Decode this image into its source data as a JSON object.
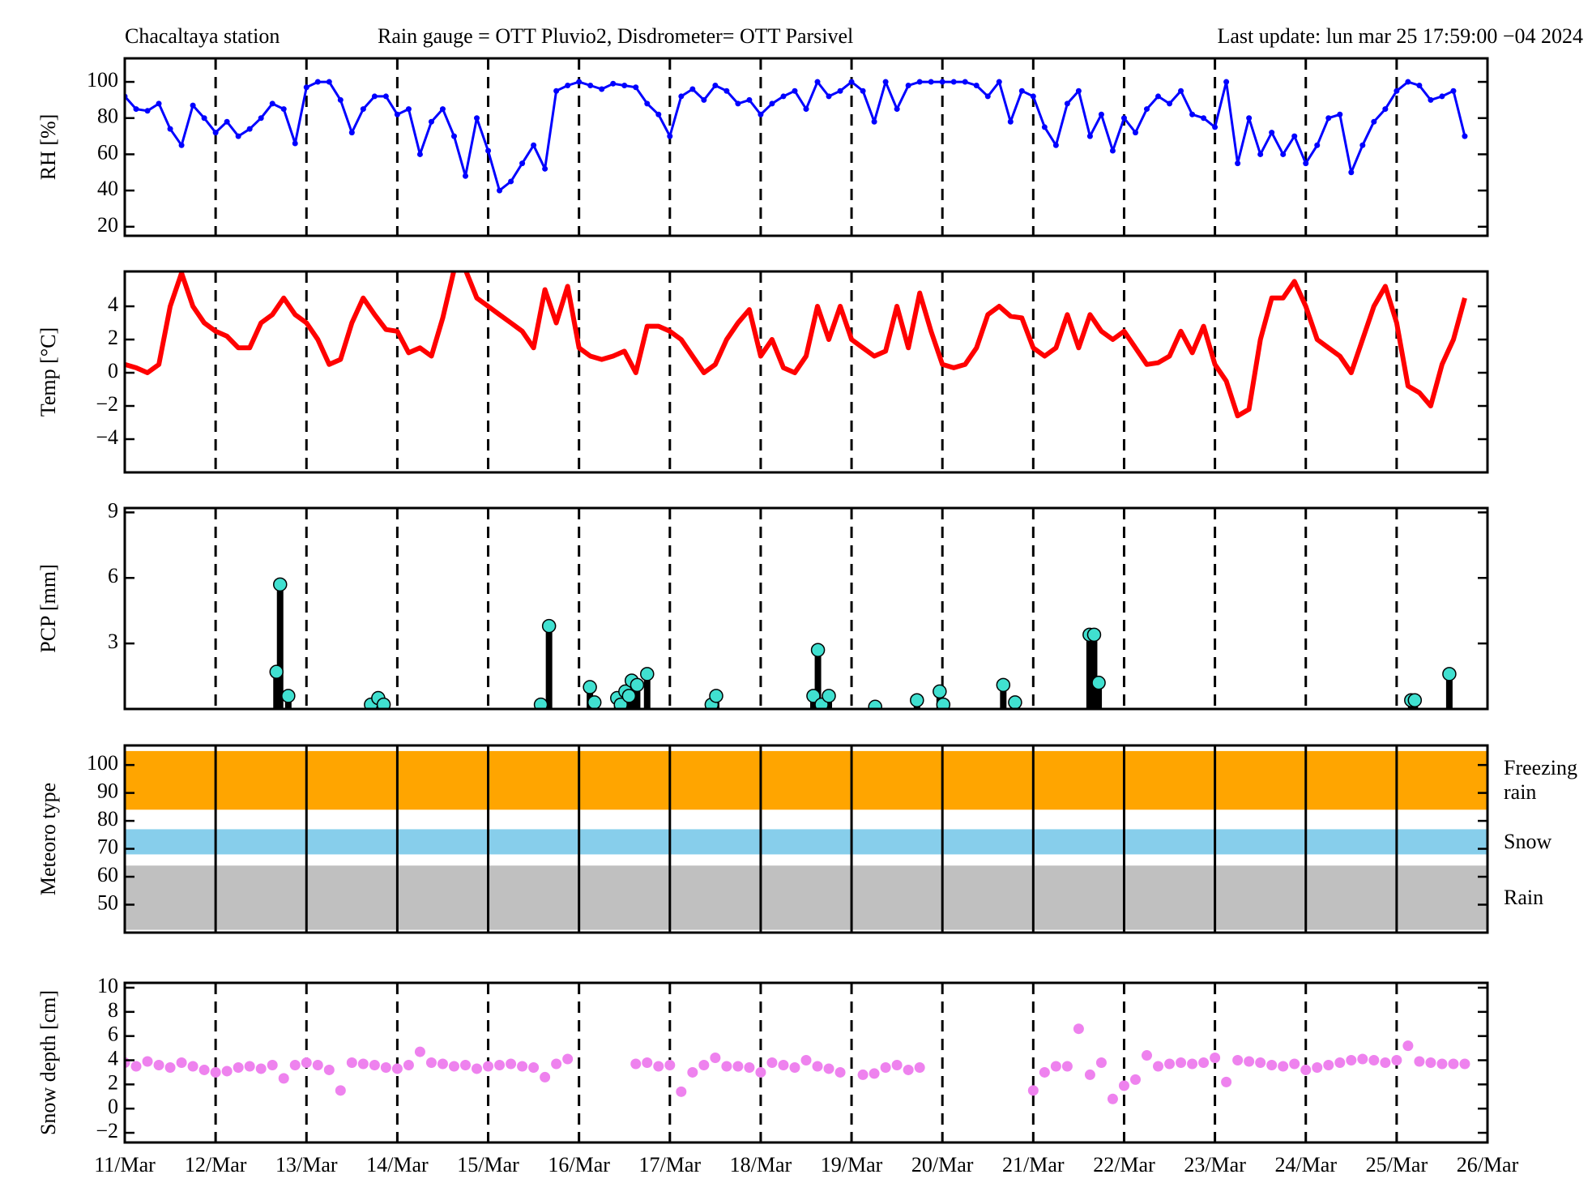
{
  "chart_data": {
    "type": "multi-panel",
    "header": [
      "Chacaltaya station",
      "Rain gauge = OTT Pluvio2, Disdrometer= OTT Parsivel",
      "Last update: lun mar 25 17:59:00 −04 2024"
    ],
    "xlim": [
      0,
      15
    ],
    "xticks": [
      {
        "value": 0,
        "label": "11/Mar"
      },
      {
        "value": 1,
        "label": "12/Mar"
      },
      {
        "value": 2,
        "label": "13/Mar"
      },
      {
        "value": 3,
        "label": "14/Mar"
      },
      {
        "value": 4,
        "label": "15/Mar"
      },
      {
        "value": 5,
        "label": "16/Mar"
      },
      {
        "value": 6,
        "label": "17/Mar"
      },
      {
        "value": 7,
        "label": "18/Mar"
      },
      {
        "value": 8,
        "label": "19/Mar"
      },
      {
        "value": 9,
        "label": "20/Mar"
      },
      {
        "value": 10,
        "label": "21/Mar"
      },
      {
        "value": 11,
        "label": "22/Mar"
      },
      {
        "value": 12,
        "label": "23/Mar"
      },
      {
        "value": 13,
        "label": "24/Mar"
      },
      {
        "value": 14,
        "label": "25/Mar"
      },
      {
        "value": 15,
        "label": "26/Mar"
      }
    ],
    "panels": [
      {
        "type": "line",
        "ylabel": "RH [%]",
        "color": "#0000ff",
        "markers": true,
        "day_lines": "dashed",
        "ylim": [
          15,
          113
        ],
        "yticks": [
          20,
          40,
          60,
          80,
          100
        ],
        "x": [
          0,
          0.125,
          0.25,
          0.375,
          0.5,
          0.625,
          0.75,
          0.875,
          1,
          1.125,
          1.25,
          1.375,
          1.5,
          1.625,
          1.75,
          1.875,
          2,
          2.125,
          2.25,
          2.375,
          2.5,
          2.625,
          2.75,
          2.875,
          3,
          3.125,
          3.25,
          3.375,
          3.5,
          3.625,
          3.75,
          3.875,
          4,
          4.125,
          4.25,
          4.375,
          4.5,
          4.625,
          4.75,
          4.875,
          5,
          5.125,
          5.25,
          5.375,
          5.5,
          5.625,
          5.75,
          5.875,
          6,
          6.125,
          6.25,
          6.375,
          6.5,
          6.625,
          6.75,
          6.875,
          7,
          7.125,
          7.25,
          7.375,
          7.5,
          7.625,
          7.75,
          7.875,
          8,
          8.125,
          8.25,
          8.375,
          8.5,
          8.625,
          8.75,
          8.875,
          9,
          9.125,
          9.25,
          9.375,
          9.5,
          9.625,
          9.75,
          9.875,
          10,
          10.125,
          10.25,
          10.375,
          10.5,
          10.625,
          10.75,
          10.875,
          11,
          11.125,
          11.25,
          11.375,
          11.5,
          11.625,
          11.75,
          11.875,
          12,
          12.125,
          12.25,
          12.375,
          12.5,
          12.625,
          12.75,
          12.875,
          13,
          13.125,
          13.25,
          13.375,
          13.5,
          13.625,
          13.75,
          13.875,
          14,
          14.125,
          14.25,
          14.375,
          14.5,
          14.625,
          14.75
        ],
        "values": [
          92,
          85,
          84,
          88,
          74,
          65,
          87,
          80,
          72,
          78,
          70,
          74,
          80,
          88,
          85,
          66,
          97,
          100,
          100,
          90,
          72,
          85,
          92,
          92,
          82,
          85,
          60,
          78,
          85,
          70,
          48,
          80,
          62,
          40,
          45,
          55,
          65,
          52,
          95,
          98,
          100,
          98,
          96,
          99,
          98,
          97,
          88,
          82,
          70,
          92,
          96,
          90,
          98,
          95,
          88,
          90,
          82,
          88,
          92,
          95,
          85,
          100,
          92,
          95,
          100,
          95,
          78,
          100,
          85,
          98,
          100,
          100,
          100,
          100,
          100,
          98,
          92,
          100,
          78,
          95,
          92,
          75,
          65,
          88,
          95,
          70,
          82,
          62,
          80,
          72,
          85,
          92,
          88,
          95,
          82,
          80,
          75,
          100,
          55,
          80,
          60,
          72,
          60,
          70,
          55,
          65,
          80,
          82,
          50,
          65,
          78,
          85,
          95,
          100,
          98,
          90,
          92,
          95,
          70
        ]
      },
      {
        "type": "line",
        "ylabel": "Temp [°C]",
        "color": "#ff0000",
        "markers": false,
        "day_lines": "dashed",
        "ylim": [
          -6,
          6.1
        ],
        "yticks": [
          {
            "value": -4,
            "label": "−4"
          },
          {
            "value": -2,
            "label": "−2"
          },
          0,
          2,
          4
        ],
        "x": [
          0,
          0.125,
          0.25,
          0.375,
          0.5,
          0.625,
          0.75,
          0.875,
          1,
          1.125,
          1.25,
          1.375,
          1.5,
          1.625,
          1.75,
          1.875,
          2,
          2.125,
          2.25,
          2.375,
          2.5,
          2.625,
          2.75,
          2.875,
          3,
          3.125,
          3.25,
          3.375,
          3.5,
          3.625,
          3.75,
          3.875,
          4,
          4.125,
          4.25,
          4.375,
          4.5,
          4.625,
          4.75,
          4.875,
          5,
          5.125,
          5.25,
          5.375,
          5.5,
          5.625,
          5.75,
          5.875,
          6,
          6.125,
          6.25,
          6.375,
          6.5,
          6.625,
          6.75,
          6.875,
          7,
          7.125,
          7.25,
          7.375,
          7.5,
          7.625,
          7.75,
          7.875,
          8,
          8.125,
          8.25,
          8.375,
          8.5,
          8.625,
          8.75,
          8.875,
          9,
          9.125,
          9.25,
          9.375,
          9.5,
          9.625,
          9.75,
          9.875,
          10,
          10.125,
          10.25,
          10.375,
          10.5,
          10.625,
          10.75,
          10.875,
          11,
          11.125,
          11.25,
          11.375,
          11.5,
          11.625,
          11.75,
          11.875,
          12,
          12.125,
          12.25,
          12.375,
          12.5,
          12.625,
          12.75,
          12.875,
          13,
          13.125,
          13.25,
          13.375,
          13.5,
          13.625,
          13.75,
          13.875,
          14,
          14.125,
          14.25,
          14.375,
          14.5,
          14.625,
          14.75
        ],
        "values": [
          0.5,
          0.3,
          0,
          0.5,
          4,
          6,
          4,
          3,
          2.5,
          2.2,
          1.5,
          1.5,
          3,
          3.5,
          4.5,
          3.5,
          3,
          2,
          0.5,
          0.8,
          3,
          4.5,
          3.5,
          2.6,
          2.5,
          1.2,
          1.5,
          1,
          3.3,
          6.2,
          6.2,
          4.5,
          4,
          3.5,
          3,
          2.5,
          1.5,
          5,
          3,
          5.2,
          1.5,
          1,
          0.8,
          1,
          1.3,
          0,
          2.8,
          2.8,
          2.5,
          2,
          1,
          0,
          0.5,
          2,
          3,
          3.8,
          1,
          2,
          0.3,
          0,
          1,
          4,
          2,
          4,
          2,
          1.5,
          1,
          1.3,
          4,
          1.5,
          4.8,
          2.5,
          0.5,
          0.3,
          0.5,
          1.5,
          3.5,
          4,
          3.4,
          3.3,
          1.5,
          1,
          1.5,
          3.5,
          1.5,
          3.5,
          2.5,
          2,
          2.5,
          1.5,
          0.5,
          0.6,
          1,
          2.5,
          1.2,
          2.8,
          0.5,
          -0.5,
          -2.6,
          -2.2,
          2,
          4.5,
          4.5,
          5.5,
          4,
          2,
          1.5,
          1,
          0,
          2,
          4,
          5.2,
          3,
          -0.8,
          -1.2,
          -2,
          0.5,
          2,
          4.5
        ]
      },
      {
        "type": "stem",
        "ylabel": "PCP [mm]",
        "color": "#40e0d0",
        "day_lines": "dashed",
        "ylim": [
          0,
          9.2
        ],
        "yticks": [
          3,
          6,
          9
        ],
        "x": [
          1.67,
          1.71,
          1.8,
          2.71,
          2.79,
          2.85,
          4.58,
          4.67,
          5.12,
          5.17,
          5.42,
          5.46,
          5.51,
          5.55,
          5.58,
          5.64,
          5.75,
          6.46,
          6.51,
          7.58,
          7.63,
          7.67,
          7.75,
          8.26,
          8.72,
          8.97,
          9.01,
          9.67,
          9.8,
          10.62,
          10.67,
          10.72,
          14.16,
          14.2,
          14.58
        ],
        "values": [
          1.7,
          5.7,
          0.6,
          0.2,
          0.5,
          0.2,
          0.2,
          3.8,
          1.0,
          0.3,
          0.5,
          0.2,
          0.8,
          0.6,
          1.3,
          1.1,
          1.6,
          0.2,
          0.6,
          0.6,
          2.7,
          0.2,
          0.6,
          0.1,
          0.4,
          0.8,
          0.2,
          1.1,
          0.3,
          3.4,
          3.4,
          1.2,
          0.4,
          0.4,
          1.6
        ]
      },
      {
        "type": "bands",
        "ylabel": "Meteoro type",
        "day_lines": "solid",
        "ylim": [
          40,
          107
        ],
        "yticks": [
          50,
          60,
          70,
          80,
          90,
          100
        ],
        "bands": [
          {
            "name": "Freezing rain",
            "range": [
              84,
              105
            ],
            "color": "#ffa500"
          },
          {
            "name": "Snow",
            "range": [
              68,
              77
            ],
            "color": "#87ceeb"
          },
          {
            "name": "Rain",
            "range": [
              41,
              64
            ],
            "color": "#c0c0c0"
          }
        ]
      },
      {
        "type": "scatter",
        "ylabel": "Snow depth  [cm]",
        "color": "#ee82ee",
        "day_lines": "dashed",
        "ylim": [
          -2.8,
          10.4
        ],
        "yticks": [
          {
            "value": -2,
            "label": "−2"
          },
          0,
          2,
          4,
          6,
          8,
          10
        ],
        "x": [
          0,
          0.125,
          0.25,
          0.375,
          0.5,
          0.625,
          0.75,
          0.875,
          1,
          1.125,
          1.25,
          1.375,
          1.5,
          1.625,
          1.75,
          1.875,
          2,
          2.125,
          2.25,
          2.375,
          2.5,
          2.625,
          2.75,
          2.875,
          3,
          3.125,
          3.25,
          3.375,
          3.5,
          3.625,
          3.75,
          3.875,
          4,
          4.125,
          4.25,
          4.375,
          4.5,
          4.625,
          4.75,
          4.875,
          5,
          5.125,
          5.25,
          5.375,
          5.5,
          5.625,
          5.75,
          5.875,
          6,
          6.125,
          6.25,
          6.375,
          6.5,
          6.625,
          6.75,
          6.875,
          7,
          7.125,
          7.25,
          7.375,
          7.5,
          7.625,
          7.75,
          7.875,
          8,
          8.125,
          8.25,
          8.375,
          8.5,
          8.625,
          8.75,
          8.875,
          9,
          9.125,
          9.25,
          9.375,
          9.5,
          9.625,
          9.75,
          9.875,
          10,
          10.125,
          10.25,
          10.375,
          10.5,
          10.625,
          10.75,
          10.875,
          11,
          11.125,
          11.25,
          11.375,
          11.5,
          11.625,
          11.75,
          11.875,
          12,
          12.125,
          12.25,
          12.375,
          12.5,
          12.625,
          12.75,
          12.875,
          13,
          13.125,
          13.25,
          13.375,
          13.5,
          13.625,
          13.75,
          13.875,
          14,
          14.125,
          14.25,
          14.375,
          14.5,
          14.625,
          14.75
        ],
        "values": [
          3.8,
          3.5,
          3.9,
          3.6,
          3.4,
          3.8,
          3.5,
          3.2,
          3,
          3.1,
          3.4,
          3.5,
          3.3,
          3.6,
          2.5,
          3.6,
          3.8,
          3.6,
          3.2,
          1.5,
          3.8,
          3.7,
          3.6,
          3.4,
          3.3,
          3.6,
          4.7,
          3.8,
          3.7,
          3.5,
          3.6,
          3.3,
          3.5,
          3.6,
          3.7,
          3.5,
          3.4,
          2.6,
          3.7,
          4.1,
          null,
          null,
          null,
          null,
          null,
          3.7,
          3.8,
          3.5,
          3.6,
          1.4,
          3.0,
          3.6,
          4.2,
          3.5,
          3.5,
          3.4,
          3.0,
          3.8,
          3.6,
          3.4,
          4.0,
          3.5,
          3.3,
          3.0,
          null,
          2.8,
          2.9,
          3.4,
          3.6,
          3.2,
          3.4,
          null,
          null,
          null,
          null,
          null,
          null,
          null,
          null,
          null,
          1.5,
          3.0,
          3.5,
          3.5,
          6.6,
          2.8,
          3.8,
          0.8,
          1.9,
          2.4,
          4.4,
          3.5,
          3.7,
          3.8,
          3.7,
          3.8,
          4.2,
          2.2,
          4.0,
          3.9,
          3.8,
          3.6,
          3.5,
          3.7,
          3.2,
          3.4,
          3.6,
          3.8,
          4.0,
          4.1,
          4.0,
          3.8,
          4.0,
          5.2,
          3.9,
          3.8,
          3.7,
          3.7,
          3.7
        ]
      }
    ]
  }
}
